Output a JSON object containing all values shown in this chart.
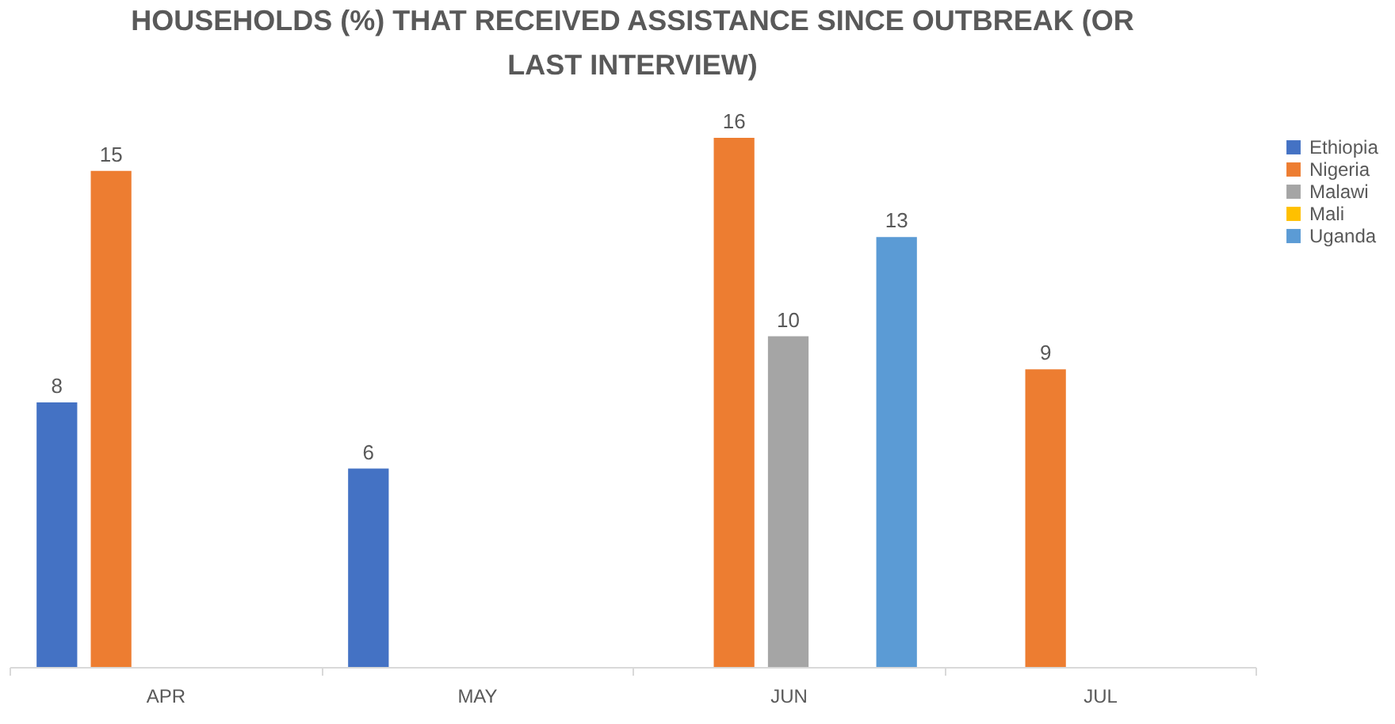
{
  "chart_data": {
    "type": "bar",
    "title": "HOUSEHOLDS (%) THAT RECEIVED ASSISTANCE SINCE OUTBREAK (OR LAST INTERVIEW)",
    "categories": [
      "APR",
      "MAY",
      "JUN",
      "JUL"
    ],
    "series": [
      {
        "name": "Ethiopia",
        "color": "#4472c4",
        "values": [
          8,
          6,
          null,
          null
        ]
      },
      {
        "name": "Nigeria",
        "color": "#ed7d31",
        "values": [
          15,
          null,
          16,
          9
        ]
      },
      {
        "name": "Malawi",
        "color": "#a5a5a5",
        "values": [
          null,
          null,
          10,
          null
        ]
      },
      {
        "name": "Mali",
        "color": "#ffc000",
        "values": [
          null,
          null,
          null,
          null
        ]
      },
      {
        "name": "Uganda",
        "color": "#5b9bd5",
        "values": [
          null,
          null,
          13,
          null
        ]
      }
    ],
    "data_labels": true,
    "tick_labels": "x",
    "grid": false,
    "legend": "right"
  }
}
